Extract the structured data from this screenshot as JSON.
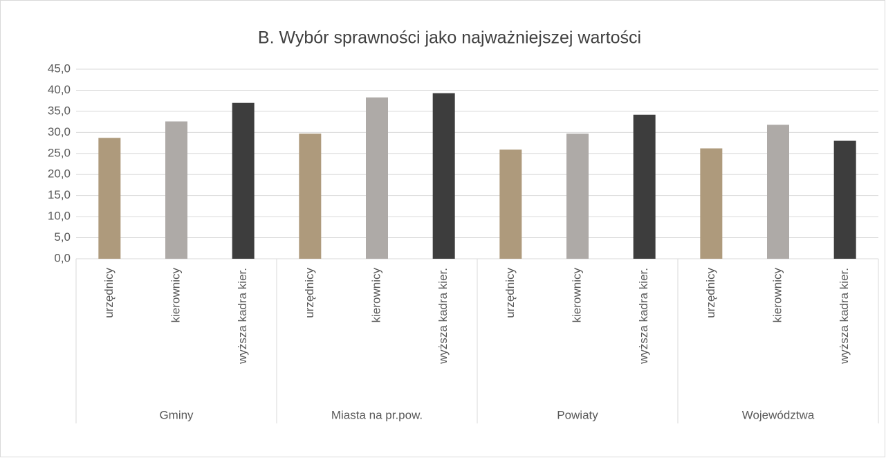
{
  "chart_data": {
    "type": "bar",
    "title": "B. Wybór sprawności jako najważniejszej wartości",
    "categories": [
      "Gminy",
      "Miasta na pr.pow.",
      "Powiaty",
      "Województwa"
    ],
    "series": [
      {
        "name": "urzędnicy",
        "color": "#ae9a7c",
        "values": [
          28.7,
          29.7,
          25.9,
          26.2
        ]
      },
      {
        "name": "kierownicy",
        "color": "#aeaaa7",
        "values": [
          32.6,
          38.3,
          29.7,
          31.8
        ]
      },
      {
        "name": "wyższa kadra kier.",
        "color": "#3d3d3d",
        "values": [
          37.0,
          39.3,
          34.2,
          28.0
        ]
      }
    ],
    "ylim": [
      0,
      45
    ],
    "yticks": [
      {
        "value": 0,
        "label": "0,0"
      },
      {
        "value": 5,
        "label": "5,0"
      },
      {
        "value": 10,
        "label": "10,0"
      },
      {
        "value": 15,
        "label": "15,0"
      },
      {
        "value": 20,
        "label": "20,0"
      },
      {
        "value": 25,
        "label": "25,0"
      },
      {
        "value": 30,
        "label": "30,0"
      },
      {
        "value": 35,
        "label": "35,0"
      },
      {
        "value": 40,
        "label": "40,0"
      },
      {
        "value": 45,
        "label": "45,0"
      }
    ],
    "grid": true
  }
}
